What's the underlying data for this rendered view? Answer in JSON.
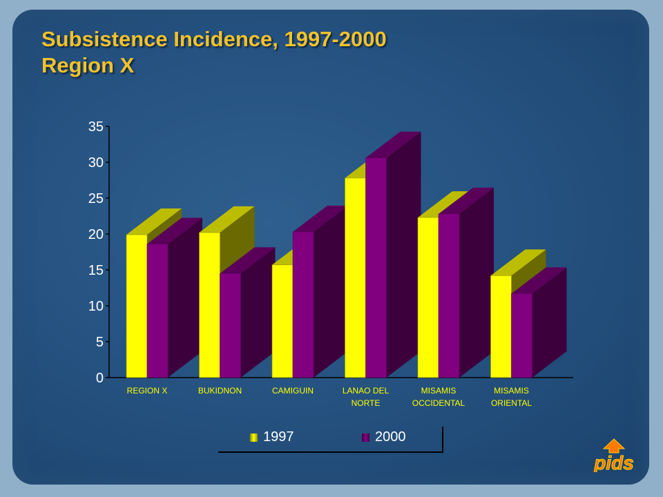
{
  "slide": {
    "title_line1": "Subsistence Incidence, 1997-2000",
    "title_line2": "Region X",
    "logo_text": "pids"
  },
  "colors": {
    "series_1997_front": "#ffff00",
    "series_2000_front": "#800080",
    "title": "#f2c22c"
  },
  "chart_data": {
    "type": "bar",
    "title": "Subsistence Incidence, 1997-2000 Region X",
    "categories": [
      [
        "REGION X"
      ],
      [
        "BUKIDNON"
      ],
      [
        "CAMIGUIN"
      ],
      [
        "LANAO DEL",
        "NORTE"
      ],
      [
        "MISAMIS",
        "OCCIDENTAL"
      ],
      [
        "MISAMIS",
        "ORIENTAL"
      ]
    ],
    "series": [
      {
        "name": "1997",
        "values": [
          19.9,
          20.2,
          15.7,
          27.8,
          22.3,
          14.2
        ]
      },
      {
        "name": "2000",
        "values": [
          18.6,
          14.5,
          20.3,
          30.6,
          22.8,
          11.7
        ]
      }
    ],
    "y_ticks": [
      0,
      5,
      10,
      15,
      20,
      25,
      30,
      35
    ],
    "ylim": [
      0,
      35
    ],
    "xlabel": "",
    "ylabel": "",
    "grid": false,
    "legend": "bottom-center",
    "three_d": true
  }
}
